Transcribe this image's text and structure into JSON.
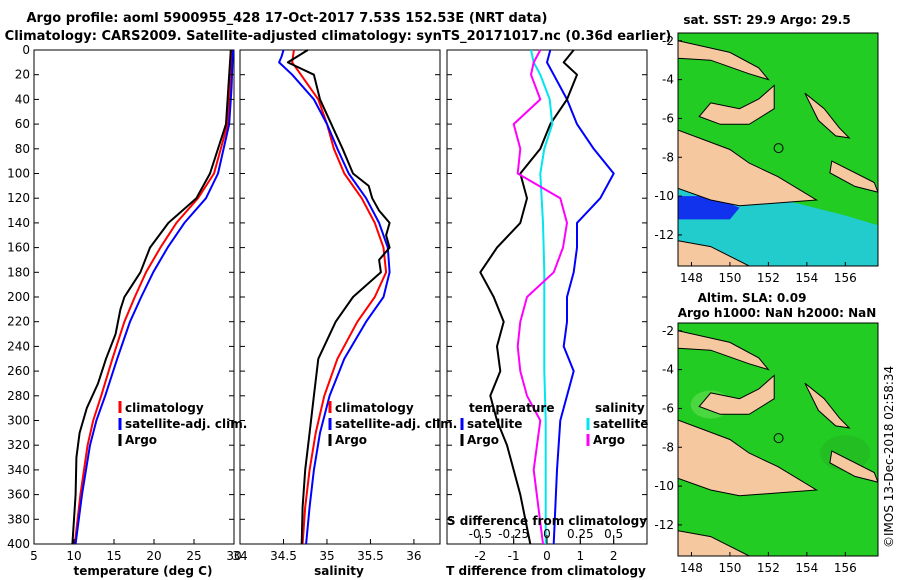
{
  "title": {
    "line1": "Argo profile: aoml 5900955_428 17-Oct-2017 7.53S 152.53E (NRT data)",
    "line2": "Climatology: CARS2009. Satellite-adjusted climatology: synTS_20171017.nc (0.36d earlier)"
  },
  "depth_ticks": [
    "0",
    "20",
    "40",
    "60",
    "80",
    "100",
    "120",
    "140",
    "160",
    "180",
    "200",
    "220",
    "240",
    "260",
    "280",
    "300",
    "320",
    "340",
    "360",
    "380",
    "400"
  ],
  "colors": {
    "climatology": "#ff0000",
    "satellite": "#0000ff",
    "argo": "#000000",
    "argo_salinity_diff": "#ff00ff",
    "satellite_salinity_diff": "#00e5ee"
  },
  "chart_data": [
    {
      "type": "line",
      "name": "temperature",
      "xlabel": "temperature (deg C)",
      "xlim": [
        5,
        30
      ],
      "ylim": [
        0,
        400
      ],
      "ticks": [
        "5",
        "10",
        "15",
        "20",
        "25",
        "30"
      ],
      "tick_values": [
        5,
        10,
        15,
        20,
        25,
        30
      ],
      "legend": [
        "climatology",
        "satellite-adj. clim.",
        "Argo"
      ],
      "series": [
        {
          "name": "climatology",
          "color": "red",
          "depth": [
            0,
            10,
            30,
            60,
            100,
            120,
            140,
            160,
            180,
            200,
            220,
            250,
            280,
            300,
            320,
            360,
            400
          ],
          "values": [
            29.8,
            29.7,
            29.5,
            29.2,
            27.5,
            25.5,
            22.8,
            20.8,
            19.0,
            17.6,
            16.3,
            14.8,
            13.4,
            12.4,
            11.7,
            10.8,
            10.1
          ]
        },
        {
          "name": "satellite",
          "color": "blue",
          "depth": [
            0,
            10,
            30,
            60,
            100,
            120,
            140,
            160,
            180,
            200,
            220,
            250,
            280,
            300,
            320,
            360,
            400
          ],
          "values": [
            29.9,
            29.8,
            29.7,
            29.4,
            28.0,
            26.5,
            23.8,
            21.7,
            19.9,
            18.4,
            17.0,
            15.4,
            13.9,
            12.8,
            12.0,
            11.0,
            10.2
          ]
        },
        {
          "name": "Argo",
          "color": "black",
          "depth": [
            0,
            10,
            30,
            60,
            100,
            120,
            140,
            160,
            180,
            200,
            210,
            230,
            250,
            270,
            290,
            310,
            330,
            360,
            400
          ],
          "values": [
            29.6,
            29.5,
            29.3,
            29.0,
            27.0,
            25.3,
            21.8,
            19.5,
            18.3,
            16.3,
            15.8,
            15.2,
            14.0,
            13.0,
            11.6,
            10.7,
            10.3,
            10.2,
            9.8
          ]
        }
      ]
    },
    {
      "type": "line",
      "name": "salinity",
      "xlabel": "salinity",
      "xlim": [
        34,
        36.3
      ],
      "ylim": [
        0,
        400
      ],
      "ticks": [
        "34",
        "34.5",
        "35",
        "35.5",
        "36"
      ],
      "tick_values": [
        34,
        34.5,
        35,
        35.5,
        36
      ],
      "legend": [
        "climatology",
        "satellite-adj. clim.",
        "Argo"
      ],
      "series": [
        {
          "name": "climatology",
          "color": "red",
          "depth": [
            0,
            10,
            20,
            40,
            60,
            80,
            100,
            120,
            140,
            160,
            180,
            200,
            220,
            250,
            280,
            310,
            340,
            370,
            400
          ],
          "values": [
            34.62,
            34.6,
            34.7,
            34.9,
            35.0,
            35.08,
            35.2,
            35.4,
            35.55,
            35.65,
            35.68,
            35.55,
            35.35,
            35.12,
            34.97,
            34.87,
            34.8,
            34.75,
            34.72
          ]
        },
        {
          "name": "satellite",
          "color": "blue",
          "depth": [
            0,
            5,
            10,
            20,
            40,
            60,
            80,
            100,
            120,
            140,
            160,
            180,
            200,
            220,
            250,
            280,
            310,
            340,
            370,
            400
          ],
          "values": [
            34.5,
            34.48,
            34.45,
            34.6,
            34.85,
            35.0,
            35.12,
            35.25,
            35.45,
            35.6,
            35.7,
            35.72,
            35.65,
            35.45,
            35.2,
            35.03,
            34.92,
            34.85,
            34.8,
            34.76
          ]
        },
        {
          "name": "Argo",
          "color": "black",
          "depth": [
            0,
            10,
            20,
            40,
            60,
            80,
            100,
            110,
            120,
            130,
            140,
            150,
            160,
            170,
            180,
            200,
            220,
            250,
            280,
            310,
            340,
            370,
            400
          ],
          "values": [
            34.78,
            34.55,
            34.85,
            34.92,
            35.05,
            35.18,
            35.3,
            35.48,
            35.52,
            35.6,
            35.72,
            35.68,
            35.72,
            35.6,
            35.62,
            35.3,
            35.1,
            34.9,
            34.85,
            34.8,
            34.75,
            34.72,
            34.71
          ]
        }
      ]
    },
    {
      "type": "line",
      "name": "difference",
      "xlabel": "T difference from climatology",
      "xlim": [
        -3,
        3
      ],
      "ylim": [
        0,
        400
      ],
      "ticks": [
        "-2",
        "-1",
        "0",
        "1",
        "2"
      ],
      "tick_values": [
        -2,
        -1,
        0,
        1,
        2
      ],
      "top_axis_label": "S difference from climatology",
      "top_ticks": [
        "-0.5",
        "-0.25",
        "0",
        "0.25",
        "0.5"
      ],
      "top_tick_values": [
        -0.5,
        -0.25,
        0,
        0.25,
        0.5
      ],
      "legend_left_header": "temperature",
      "legend_right_header": "salinity",
      "legend_left": [
        "satellite",
        "Argo"
      ],
      "legend_right": [
        "satellite",
        "Argo"
      ],
      "series": [
        {
          "name": "T satellite",
          "color": "blue",
          "depth": [
            0,
            10,
            20,
            40,
            60,
            80,
            100,
            120,
            140,
            160,
            180,
            200,
            220,
            240,
            260,
            280,
            300,
            340,
            400
          ],
          "values": [
            0.1,
            0.0,
            0.2,
            0.6,
            0.9,
            1.4,
            2.0,
            1.6,
            0.9,
            0.9,
            0.8,
            0.6,
            0.6,
            0.5,
            0.8,
            0.6,
            0.4,
            0.3,
            0.2
          ]
        },
        {
          "name": "T Argo",
          "color": "black",
          "depth": [
            0,
            10,
            20,
            40,
            60,
            80,
            100,
            120,
            140,
            160,
            180,
            200,
            220,
            240,
            260,
            280,
            300,
            320,
            360,
            400
          ],
          "values": [
            0.8,
            0.5,
            0.9,
            0.6,
            0.1,
            -0.2,
            -0.8,
            -0.6,
            -0.8,
            -1.5,
            -2.0,
            -1.6,
            -1.3,
            -1.5,
            -1.4,
            -1.7,
            -1.5,
            -1.2,
            -0.8,
            -0.5
          ]
        },
        {
          "name": "S satellite",
          "color": "cyan",
          "depth": [
            0,
            10,
            20,
            40,
            60,
            80,
            100,
            140,
            180,
            220,
            260,
            300,
            340,
            400
          ],
          "values": [
            -0.12,
            -0.1,
            -0.05,
            0.02,
            0.04,
            -0.02,
            -0.05,
            -0.03,
            -0.02,
            -0.02,
            -0.02,
            -0.01,
            -0.01,
            -0.01
          ]
        },
        {
          "name": "S Argo",
          "color": "magenta",
          "depth": [
            0,
            10,
            20,
            40,
            60,
            80,
            100,
            120,
            140,
            160,
            180,
            200,
            220,
            240,
            260,
            280,
            300,
            340,
            400
          ],
          "values": [
            -0.05,
            -0.1,
            -0.12,
            -0.05,
            -0.25,
            -0.2,
            -0.22,
            0.1,
            0.15,
            0.12,
            0.05,
            -0.15,
            -0.2,
            -0.22,
            -0.2,
            -0.15,
            -0.05,
            -0.1,
            -0.03
          ]
        }
      ]
    }
  ],
  "maps": {
    "sst_title": "sat. SST: 29.9 Argo: 29.5",
    "sla_title1": "Altim. SLA: 0.09",
    "sla_title2": "Argo h1000: NaN h2000: NaN",
    "lon_ticks": [
      "148",
      "150",
      "152",
      "154",
      "156"
    ],
    "lat_ticks": [
      "-2",
      "-4",
      "-6",
      "-8",
      "-10",
      "-12"
    ],
    "credit": "©IMOS 13-Dec-2018 02:58:34",
    "ocean_color": "#22cc22",
    "land_color": "#f5c8a0",
    "cool_color": "#22cccc"
  }
}
